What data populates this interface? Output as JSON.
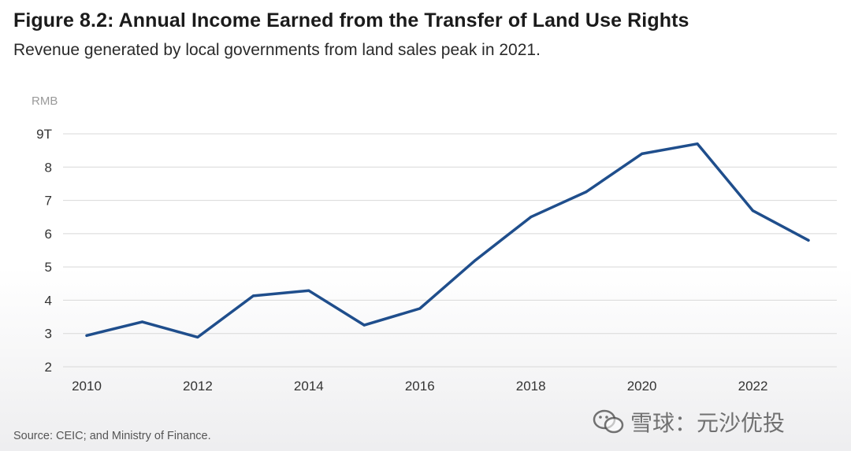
{
  "header": {
    "title": "Figure 8.2: Annual Income Earned from the Transfer of Land Use Rights",
    "subtitle": "Revenue generated by local governments from land sales peak in 2021."
  },
  "footer": {
    "source": "Source: CEIC; and Ministry of Finance."
  },
  "watermark": {
    "text": "雪球：元沙优投"
  },
  "chart_data": {
    "type": "line",
    "title": "Figure 8.2: Annual Income Earned from the Transfer of Land Use Rights",
    "subtitle": "Revenue generated by local governments from land sales peak in 2021.",
    "ylabel": "RMB",
    "xlabel": "",
    "x": [
      2010,
      2011,
      2012,
      2013,
      2014,
      2015,
      2016,
      2017,
      2018,
      2019,
      2020,
      2021,
      2022,
      2023
    ],
    "series": [
      {
        "values": [
          2.94,
          3.35,
          2.89,
          4.13,
          4.29,
          3.25,
          3.75,
          5.2,
          6.5,
          7.26,
          8.4,
          8.7,
          6.69,
          5.8
        ],
        "color": "#1f4e8c"
      }
    ],
    "ylim": [
      2,
      9
    ],
    "yticks": [
      2,
      3,
      4,
      5,
      6,
      7,
      8,
      9
    ],
    "ytick_labels": [
      "2",
      "3",
      "4",
      "5",
      "6",
      "7",
      "8",
      "9T"
    ],
    "xticks": [
      2010,
      2012,
      2014,
      2016,
      2018,
      2020,
      2022
    ],
    "xtick_labels": [
      "2010",
      "2012",
      "2014",
      "2016",
      "2018",
      "2020",
      "2022"
    ],
    "grid": true,
    "legend": "none"
  }
}
